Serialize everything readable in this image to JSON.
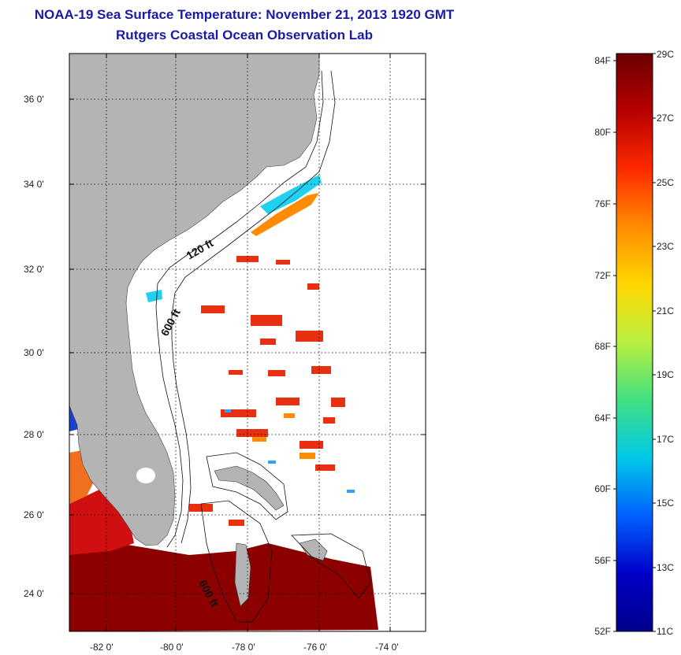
{
  "title": {
    "line1": "NOAA-19 Sea Surface Temperature:  November 21, 2013 1920 GMT",
    "line2": "Rutgers Coastal Ocean Observation Lab"
  },
  "map": {
    "lat_ticks": [
      "36 0'",
      "34 0'",
      "32 0'",
      "30 0'",
      "28 0'",
      "26 0'",
      "24 0'"
    ],
    "lon_ticks": [
      "-82 0'",
      "-80 0'",
      "-78 0'",
      "-76 0'",
      "-74 0'"
    ],
    "contour_labels": [
      "120 ft",
      "600 ft",
      "600 ft"
    ],
    "land_color": "#b4b4b4"
  },
  "colorbar": {
    "fahrenheit_labels": [
      "84F",
      "80F",
      "76F",
      "72F",
      "68F",
      "64F",
      "60F",
      "56F",
      "52F"
    ],
    "celsius_labels": [
      "29C",
      "27C",
      "25C",
      "23C",
      "21C",
      "19C",
      "17C",
      "15C",
      "13C",
      "11C"
    ],
    "colors": [
      "#6b0000",
      "#b80000",
      "#ff2a00",
      "#ff8c00",
      "#ffd700",
      "#b8f040",
      "#40e080",
      "#00c8e8",
      "#0060ff",
      "#0000c8",
      "#00008b"
    ]
  }
}
